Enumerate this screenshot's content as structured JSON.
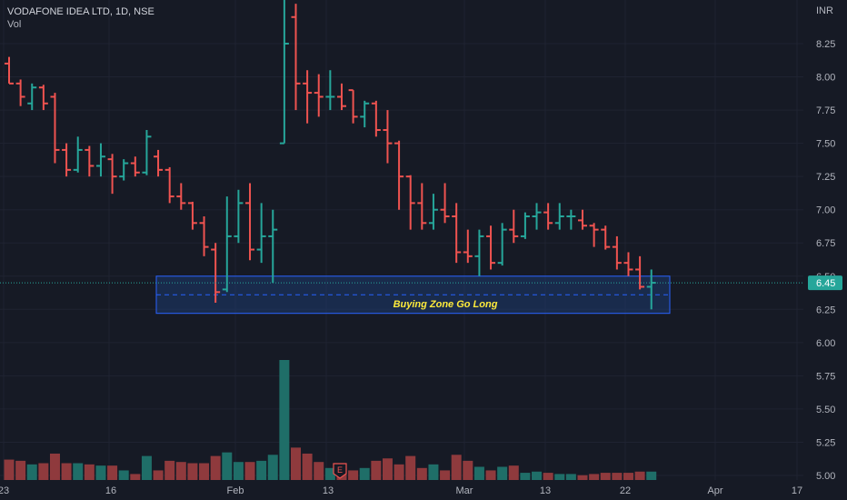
{
  "header": {
    "title": "VODAFONE IDEA LTD, 1D, NSE",
    "volume_label": "Vol"
  },
  "currency": "INR",
  "colors": {
    "background": "#161a25",
    "up": "#26a69a",
    "down": "#ef5350",
    "up_volume": "#1f6e68",
    "down_volume": "#8f3a3d",
    "zone_fill": "#1e3a6e",
    "zone_border": "#2962ff",
    "zone_text": "#ffeb3b",
    "last_price_tag": "#26a69a"
  },
  "annotation": {
    "zone_label": "Buying Zone Go Long",
    "zone_top": 6.5,
    "zone_bottom": 6.22,
    "zone_mid": 6.36
  },
  "last_price": {
    "label": "6.45",
    "value": 6.45
  },
  "earnings_marker": {
    "icon": "earnings-flag-icon",
    "label": "E"
  },
  "chart_data": {
    "type": "ohlc",
    "price_axis": {
      "ticks": [
        "8.25",
        "8.00",
        "7.75",
        "7.50",
        "7.25",
        "7.00",
        "6.75",
        "6.50",
        "6.25",
        "6.00",
        "5.75",
        "5.50",
        "5.25",
        "5.00"
      ],
      "ylim": [
        4.98,
        8.55
      ]
    },
    "time_axis": {
      "labels": [
        "23",
        "16",
        "Feb",
        "13",
        "Mar",
        "13",
        "22",
        "Apr",
        "17"
      ]
    },
    "bars": [
      {
        "o": 8.1,
        "h": 8.15,
        "l": 7.95,
        "c": 7.95,
        "v": 17
      },
      {
        "o": 7.95,
        "h": 7.98,
        "l": 7.78,
        "c": 7.85,
        "v": 16
      },
      {
        "o": 7.8,
        "h": 7.95,
        "l": 7.75,
        "c": 7.92,
        "v": 13
      },
      {
        "o": 7.92,
        "h": 7.94,
        "l": 7.75,
        "c": 7.8,
        "v": 14
      },
      {
        "o": 7.85,
        "h": 7.88,
        "l": 7.35,
        "c": 7.45,
        "v": 22
      },
      {
        "o": 7.45,
        "h": 7.5,
        "l": 7.25,
        "c": 7.3,
        "v": 14
      },
      {
        "o": 7.3,
        "h": 7.55,
        "l": 7.28,
        "c": 7.45,
        "v": 14
      },
      {
        "o": 7.45,
        "h": 7.48,
        "l": 7.25,
        "c": 7.33,
        "v": 13
      },
      {
        "o": 7.33,
        "h": 7.5,
        "l": 7.25,
        "c": 7.4,
        "v": 12
      },
      {
        "o": 7.38,
        "h": 7.42,
        "l": 7.12,
        "c": 7.25,
        "v": 12
      },
      {
        "o": 7.25,
        "h": 7.38,
        "l": 7.22,
        "c": 7.35,
        "v": 8
      },
      {
        "o": 7.35,
        "h": 7.4,
        "l": 7.25,
        "c": 7.28,
        "v": 5
      },
      {
        "o": 7.28,
        "h": 7.6,
        "l": 7.26,
        "c": 7.55,
        "v": 20
      },
      {
        "o": 7.4,
        "h": 7.45,
        "l": 7.25,
        "c": 7.3,
        "v": 8
      },
      {
        "o": 7.3,
        "h": 7.32,
        "l": 7.05,
        "c": 7.1,
        "v": 16
      },
      {
        "o": 7.1,
        "h": 7.2,
        "l": 7.0,
        "c": 7.05,
        "v": 15
      },
      {
        "o": 7.05,
        "h": 7.06,
        "l": 6.85,
        "c": 6.9,
        "v": 14
      },
      {
        "o": 6.9,
        "h": 6.95,
        "l": 6.65,
        "c": 6.72,
        "v": 14
      },
      {
        "o": 6.7,
        "h": 6.75,
        "l": 6.3,
        "c": 6.38,
        "v": 20
      },
      {
        "o": 6.4,
        "h": 7.1,
        "l": 6.38,
        "c": 6.8,
        "v": 23
      },
      {
        "o": 6.8,
        "h": 7.15,
        "l": 6.75,
        "c": 7.05,
        "v": 15
      },
      {
        "o": 7.05,
        "h": 7.2,
        "l": 6.62,
        "c": 6.7,
        "v": 15
      },
      {
        "o": 6.7,
        "h": 7.05,
        "l": 6.6,
        "c": 6.8,
        "v": 16
      },
      {
        "o": 6.8,
        "h": 7.0,
        "l": 6.45,
        "c": 6.85,
        "v": 21
      },
      {
        "o": 7.5,
        "h": 8.6,
        "l": 7.5,
        "c": 8.25,
        "v": 100
      },
      {
        "o": 8.45,
        "h": 8.55,
        "l": 7.75,
        "c": 7.95,
        "v": 27
      },
      {
        "o": 7.95,
        "h": 8.05,
        "l": 7.65,
        "c": 7.88,
        "v": 22
      },
      {
        "o": 7.88,
        "h": 8.02,
        "l": 7.7,
        "c": 7.85,
        "v": 15
      },
      {
        "o": 7.85,
        "h": 8.05,
        "l": 7.75,
        "c": 7.85,
        "v": 10
      },
      {
        "o": 7.85,
        "h": 7.95,
        "l": 7.75,
        "c": 7.78,
        "v": 8
      },
      {
        "o": 7.9,
        "h": 7.9,
        "l": 7.65,
        "c": 7.7,
        "v": 8
      },
      {
        "o": 7.7,
        "h": 7.82,
        "l": 7.62,
        "c": 7.8,
        "v": 10
      },
      {
        "o": 7.8,
        "h": 7.82,
        "l": 7.55,
        "c": 7.6,
        "v": 16
      },
      {
        "o": 7.6,
        "h": 7.75,
        "l": 7.35,
        "c": 7.5,
        "v": 18
      },
      {
        "o": 7.5,
        "h": 7.52,
        "l": 7.0,
        "c": 7.25,
        "v": 13
      },
      {
        "o": 7.25,
        "h": 7.26,
        "l": 6.85,
        "c": 7.05,
        "v": 20
      },
      {
        "o": 7.05,
        "h": 7.2,
        "l": 6.85,
        "c": 6.9,
        "v": 10
      },
      {
        "o": 6.9,
        "h": 7.12,
        "l": 6.85,
        "c": 7.0,
        "v": 13
      },
      {
        "o": 7.0,
        "h": 7.2,
        "l": 6.9,
        "c": 6.95,
        "v": 8
      },
      {
        "o": 6.95,
        "h": 7.05,
        "l": 6.6,
        "c": 6.68,
        "v": 21
      },
      {
        "o": 6.68,
        "h": 6.85,
        "l": 6.6,
        "c": 6.65,
        "v": 16
      },
      {
        "o": 6.65,
        "h": 6.85,
        "l": 6.5,
        "c": 6.8,
        "v": 11
      },
      {
        "o": 6.8,
        "h": 6.88,
        "l": 6.55,
        "c": 6.6,
        "v": 8
      },
      {
        "o": 6.6,
        "h": 6.9,
        "l": 6.58,
        "c": 6.85,
        "v": 11
      },
      {
        "o": 6.85,
        "h": 7.0,
        "l": 6.75,
        "c": 6.8,
        "v": 12
      },
      {
        "o": 6.8,
        "h": 6.98,
        "l": 6.78,
        "c": 6.95,
        "v": 6
      },
      {
        "o": 6.95,
        "h": 7.05,
        "l": 6.85,
        "c": 6.98,
        "v": 7
      },
      {
        "o": 6.98,
        "h": 7.05,
        "l": 6.85,
        "c": 6.9,
        "v": 6
      },
      {
        "o": 6.9,
        "h": 7.05,
        "l": 6.85,
        "c": 6.95,
        "v": 5
      },
      {
        "o": 6.95,
        "h": 7.0,
        "l": 6.85,
        "c": 6.95,
        "v": 5
      },
      {
        "o": 6.92,
        "h": 7.0,
        "l": 6.85,
        "c": 6.88,
        "v": 4
      },
      {
        "o": 6.88,
        "h": 6.9,
        "l": 6.72,
        "c": 6.85,
        "v": 5
      },
      {
        "o": 6.85,
        "h": 6.88,
        "l": 6.7,
        "c": 6.72,
        "v": 6
      },
      {
        "o": 6.72,
        "h": 6.8,
        "l": 6.55,
        "c": 6.6,
        "v": 6
      },
      {
        "o": 6.6,
        "h": 6.68,
        "l": 6.5,
        "c": 6.55,
        "v": 6
      },
      {
        "o": 6.55,
        "h": 6.65,
        "l": 6.4,
        "c": 6.42,
        "v": 7
      },
      {
        "o": 6.42,
        "h": 6.55,
        "l": 6.25,
        "c": 6.45,
        "v": 7
      }
    ]
  }
}
